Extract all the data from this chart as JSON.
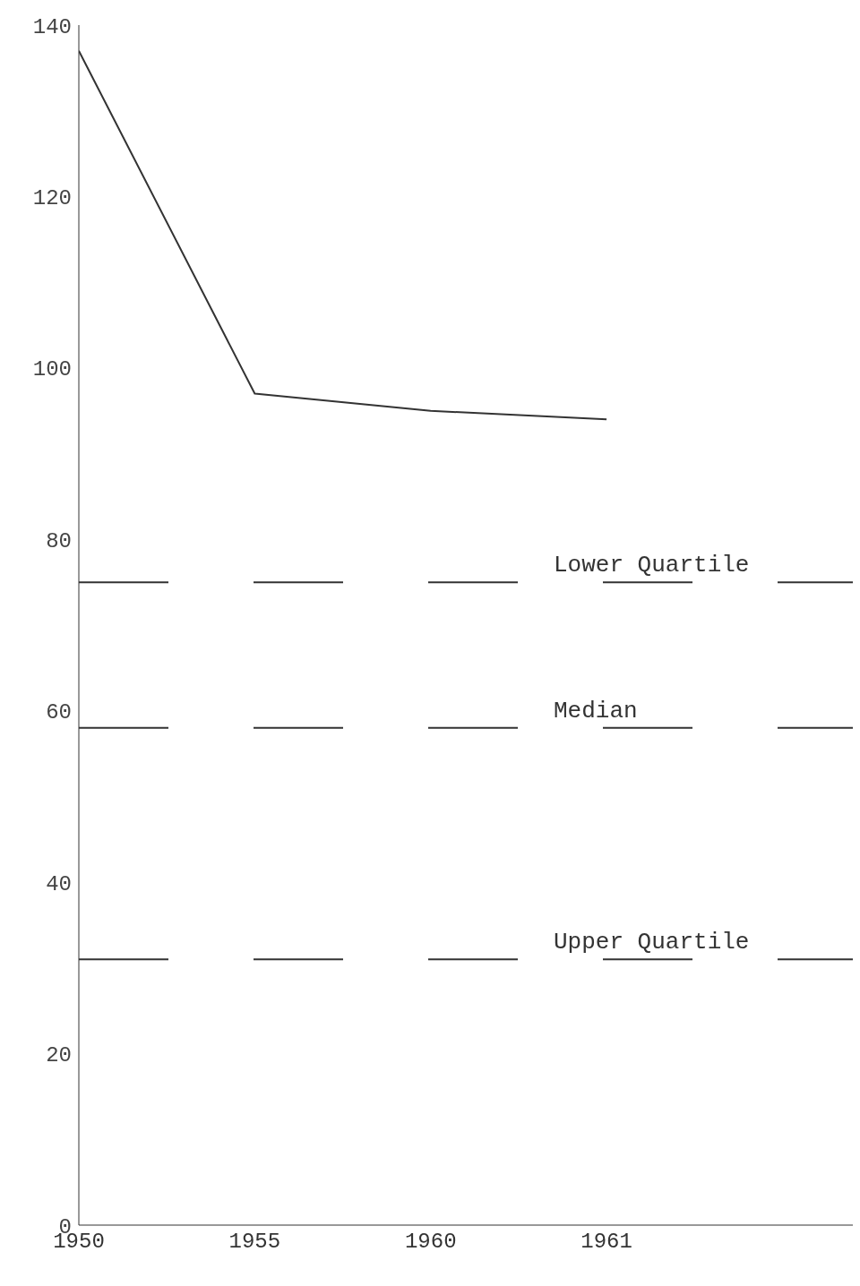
{
  "chart_data": {
    "type": "line",
    "categories": [
      "1950",
      "1955",
      "1960",
      "1961"
    ],
    "series": [
      {
        "color": "#333333",
        "values": [
          137,
          97,
          95,
          94
        ]
      }
    ],
    "ylim": [
      0,
      140
    ],
    "yticks": [
      0,
      20,
      40,
      60,
      80,
      100,
      120,
      140
    ],
    "grid": false,
    "marker": "none",
    "line_style": "solid",
    "ref_lines": [
      {
        "axis": "y",
        "value": 75,
        "label": "Lower Quartile",
        "color": "#333333",
        "line_style": "dashed"
      },
      {
        "axis": "y",
        "value": 58,
        "label": "Median",
        "color": "#333333",
        "line_style": "dashed"
      },
      {
        "axis": "y",
        "value": 31,
        "label": "Upper Quartile",
        "color": "#333333",
        "line_style": "dashed"
      }
    ]
  }
}
